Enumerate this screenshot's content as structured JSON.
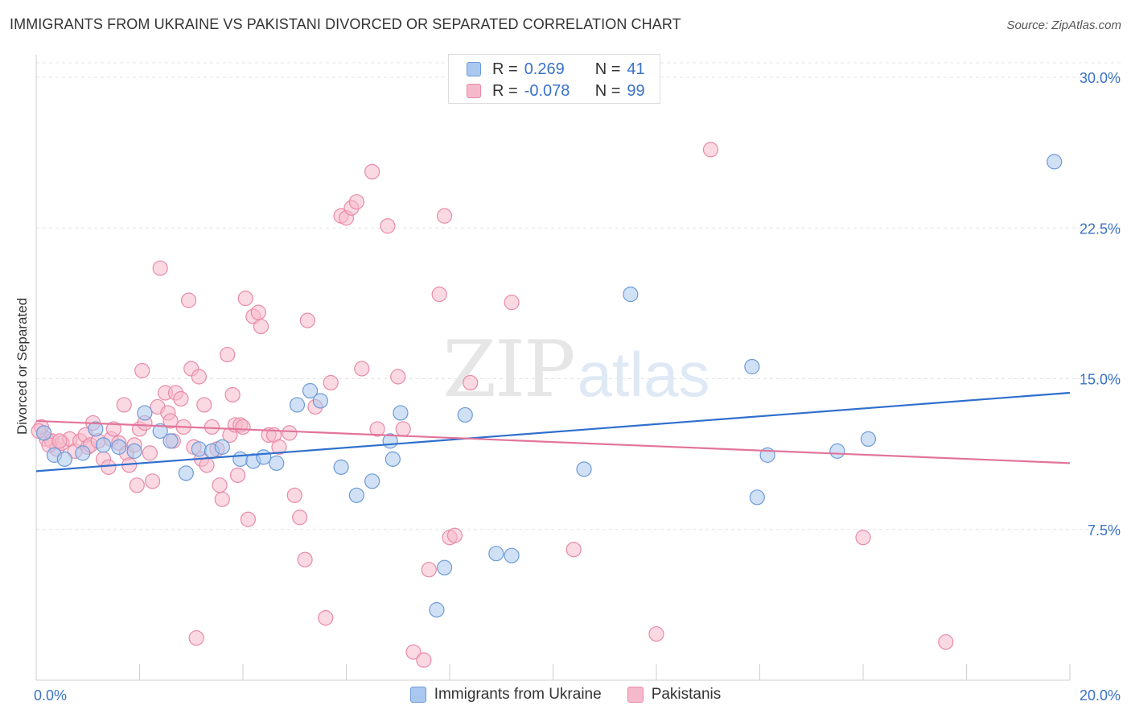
{
  "title": "IMMIGRANTS FROM UKRAINE VS PAKISTANI DIVORCED OR SEPARATED CORRELATION CHART",
  "source": "Source: ZipAtlas.com",
  "watermark": {
    "zip": "ZIP",
    "atlas": "atlas"
  },
  "legend": {
    "rows": [
      {
        "r_label": "R =",
        "r_value": "0.269",
        "n_label": "N =",
        "n_value": "41",
        "color": "#aac8ef"
      },
      {
        "r_label": "R =",
        "r_value": "-0.078",
        "n_label": "N =",
        "n_value": "99",
        "color": "#f5b9cb"
      }
    ]
  },
  "bottom_legend": [
    {
      "label": "Immigrants from Ukraine",
      "color": "#aac8ef"
    },
    {
      "label": "Pakistanis",
      "color": "#f5b9cb"
    }
  ],
  "chart_data": {
    "type": "scatter",
    "title": "IMMIGRANTS FROM UKRAINE VS PAKISTANI DIVORCED OR SEPARATED CORRELATION CHART",
    "xlabel": "",
    "ylabel": "Divorced or Separated",
    "xlim": [
      0,
      20
    ],
    "ylim": [
      0,
      30
    ],
    "x_tick_labels": [
      {
        "value": 0,
        "label": "0.0%"
      },
      {
        "value": 20,
        "label": "20.0%"
      }
    ],
    "y_tick_labels": [
      {
        "value": 7.5,
        "label": "7.5%"
      },
      {
        "value": 15,
        "label": "15.0%"
      },
      {
        "value": 22.5,
        "label": "22.5%"
      },
      {
        "value": 30,
        "label": "30.0%"
      }
    ],
    "grid": true,
    "series": [
      {
        "name": "Immigrants from Ukraine",
        "color": "#aac8ef",
        "stroke": "#6d9ad8",
        "trend": {
          "color": "#2f6fce",
          "x": [
            0,
            20
          ],
          "y": [
            10.4,
            14.3
          ]
        },
        "points": [
          [
            0.15,
            12.3
          ],
          [
            0.35,
            11.2
          ],
          [
            0.55,
            11.0
          ],
          [
            0.9,
            11.3
          ],
          [
            1.15,
            12.5
          ],
          [
            1.3,
            11.7
          ],
          [
            1.6,
            11.6
          ],
          [
            1.9,
            11.4
          ],
          [
            2.1,
            13.3
          ],
          [
            2.4,
            12.4
          ],
          [
            2.6,
            11.9
          ],
          [
            2.9,
            10.3
          ],
          [
            3.15,
            11.5
          ],
          [
            3.4,
            11.4
          ],
          [
            3.6,
            11.6
          ],
          [
            3.95,
            11.0
          ],
          [
            4.2,
            10.9
          ],
          [
            4.4,
            11.1
          ],
          [
            4.65,
            10.8
          ],
          [
            5.05,
            13.7
          ],
          [
            5.3,
            14.4
          ],
          [
            5.5,
            13.9
          ],
          [
            5.9,
            10.6
          ],
          [
            6.2,
            9.2
          ],
          [
            6.5,
            9.9
          ],
          [
            6.85,
            11.9
          ],
          [
            6.9,
            11.0
          ],
          [
            7.05,
            13.3
          ],
          [
            7.9,
            5.6
          ],
          [
            7.75,
            3.5
          ],
          [
            8.3,
            13.2
          ],
          [
            8.9,
            6.3
          ],
          [
            9.2,
            6.2
          ],
          [
            10.6,
            10.5
          ],
          [
            11.5,
            19.2
          ],
          [
            13.85,
            15.6
          ],
          [
            13.95,
            9.1
          ],
          [
            14.15,
            11.2
          ],
          [
            15.5,
            11.4
          ],
          [
            16.1,
            12.0
          ],
          [
            19.7,
            25.8
          ]
        ]
      },
      {
        "name": "Pakistanis",
        "color": "#f5b9cb",
        "stroke": "#e98aa8",
        "trend": {
          "color": "#e2749b",
          "x": [
            0,
            20
          ],
          "y": [
            12.9,
            10.8
          ]
        },
        "points": [
          [
            0.1,
            12.6
          ],
          [
            0.2,
            12.0
          ],
          [
            0.3,
            11.9
          ],
          [
            0.4,
            11.5
          ],
          [
            0.5,
            11.8
          ],
          [
            0.65,
            12.0
          ],
          [
            0.75,
            11.4
          ],
          [
            0.85,
            11.9
          ],
          [
            0.95,
            12.2
          ],
          [
            1.0,
            11.6
          ],
          [
            1.05,
            11.7
          ],
          [
            1.1,
            12.8
          ],
          [
            1.2,
            11.9
          ],
          [
            1.3,
            11.0
          ],
          [
            1.4,
            10.6
          ],
          [
            1.45,
            12.0
          ],
          [
            1.5,
            12.5
          ],
          [
            1.6,
            11.8
          ],
          [
            1.7,
            13.7
          ],
          [
            1.75,
            11.3
          ],
          [
            1.8,
            10.7
          ],
          [
            1.9,
            11.7
          ],
          [
            1.95,
            9.7
          ],
          [
            2.0,
            12.5
          ],
          [
            2.05,
            15.4
          ],
          [
            2.1,
            12.8
          ],
          [
            2.2,
            11.3
          ],
          [
            2.25,
            9.9
          ],
          [
            2.35,
            13.6
          ],
          [
            2.4,
            20.5
          ],
          [
            2.5,
            14.3
          ],
          [
            2.55,
            13.3
          ],
          [
            2.6,
            12.9
          ],
          [
            2.65,
            11.9
          ],
          [
            2.7,
            14.3
          ],
          [
            2.8,
            14.0
          ],
          [
            2.85,
            12.6
          ],
          [
            2.95,
            18.9
          ],
          [
            3.0,
            15.5
          ],
          [
            3.05,
            11.6
          ],
          [
            3.1,
            2.1
          ],
          [
            3.15,
            15.1
          ],
          [
            3.2,
            11.0
          ],
          [
            3.25,
            13.7
          ],
          [
            3.3,
            10.7
          ],
          [
            3.4,
            12.6
          ],
          [
            3.5,
            11.5
          ],
          [
            3.55,
            9.7
          ],
          [
            3.6,
            9.0
          ],
          [
            3.7,
            16.2
          ],
          [
            3.75,
            12.2
          ],
          [
            3.8,
            14.2
          ],
          [
            3.85,
            12.7
          ],
          [
            3.9,
            10.2
          ],
          [
            3.95,
            12.7
          ],
          [
            4.0,
            12.6
          ],
          [
            4.05,
            19.0
          ],
          [
            4.1,
            8.0
          ],
          [
            4.2,
            18.1
          ],
          [
            4.3,
            18.3
          ],
          [
            4.35,
            17.6
          ],
          [
            4.5,
            12.2
          ],
          [
            4.6,
            12.2
          ],
          [
            4.7,
            11.6
          ],
          [
            4.9,
            12.3
          ],
          [
            5.0,
            9.2
          ],
          [
            5.1,
            8.1
          ],
          [
            5.2,
            6.0
          ],
          [
            5.25,
            17.9
          ],
          [
            5.4,
            13.6
          ],
          [
            5.6,
            3.1
          ],
          [
            5.7,
            14.8
          ],
          [
            5.9,
            23.1
          ],
          [
            6.0,
            23.0
          ],
          [
            6.1,
            23.5
          ],
          [
            6.2,
            23.8
          ],
          [
            6.3,
            15.5
          ],
          [
            6.5,
            25.3
          ],
          [
            6.6,
            12.5
          ],
          [
            6.8,
            22.6
          ],
          [
            7.0,
            15.1
          ],
          [
            7.1,
            12.5
          ],
          [
            7.3,
            1.4
          ],
          [
            7.5,
            1.0
          ],
          [
            7.6,
            5.5
          ],
          [
            7.8,
            19.2
          ],
          [
            7.9,
            23.1
          ],
          [
            8.0,
            7.1
          ],
          [
            8.1,
            7.2
          ],
          [
            8.4,
            14.8
          ],
          [
            9.2,
            18.8
          ],
          [
            10.4,
            6.5
          ],
          [
            12.0,
            2.3
          ],
          [
            13.05,
            26.4
          ],
          [
            16.0,
            7.1
          ],
          [
            17.6,
            1.9
          ],
          [
            0.05,
            12.4
          ],
          [
            0.25,
            11.7
          ],
          [
            0.45,
            11.9
          ]
        ]
      }
    ]
  }
}
